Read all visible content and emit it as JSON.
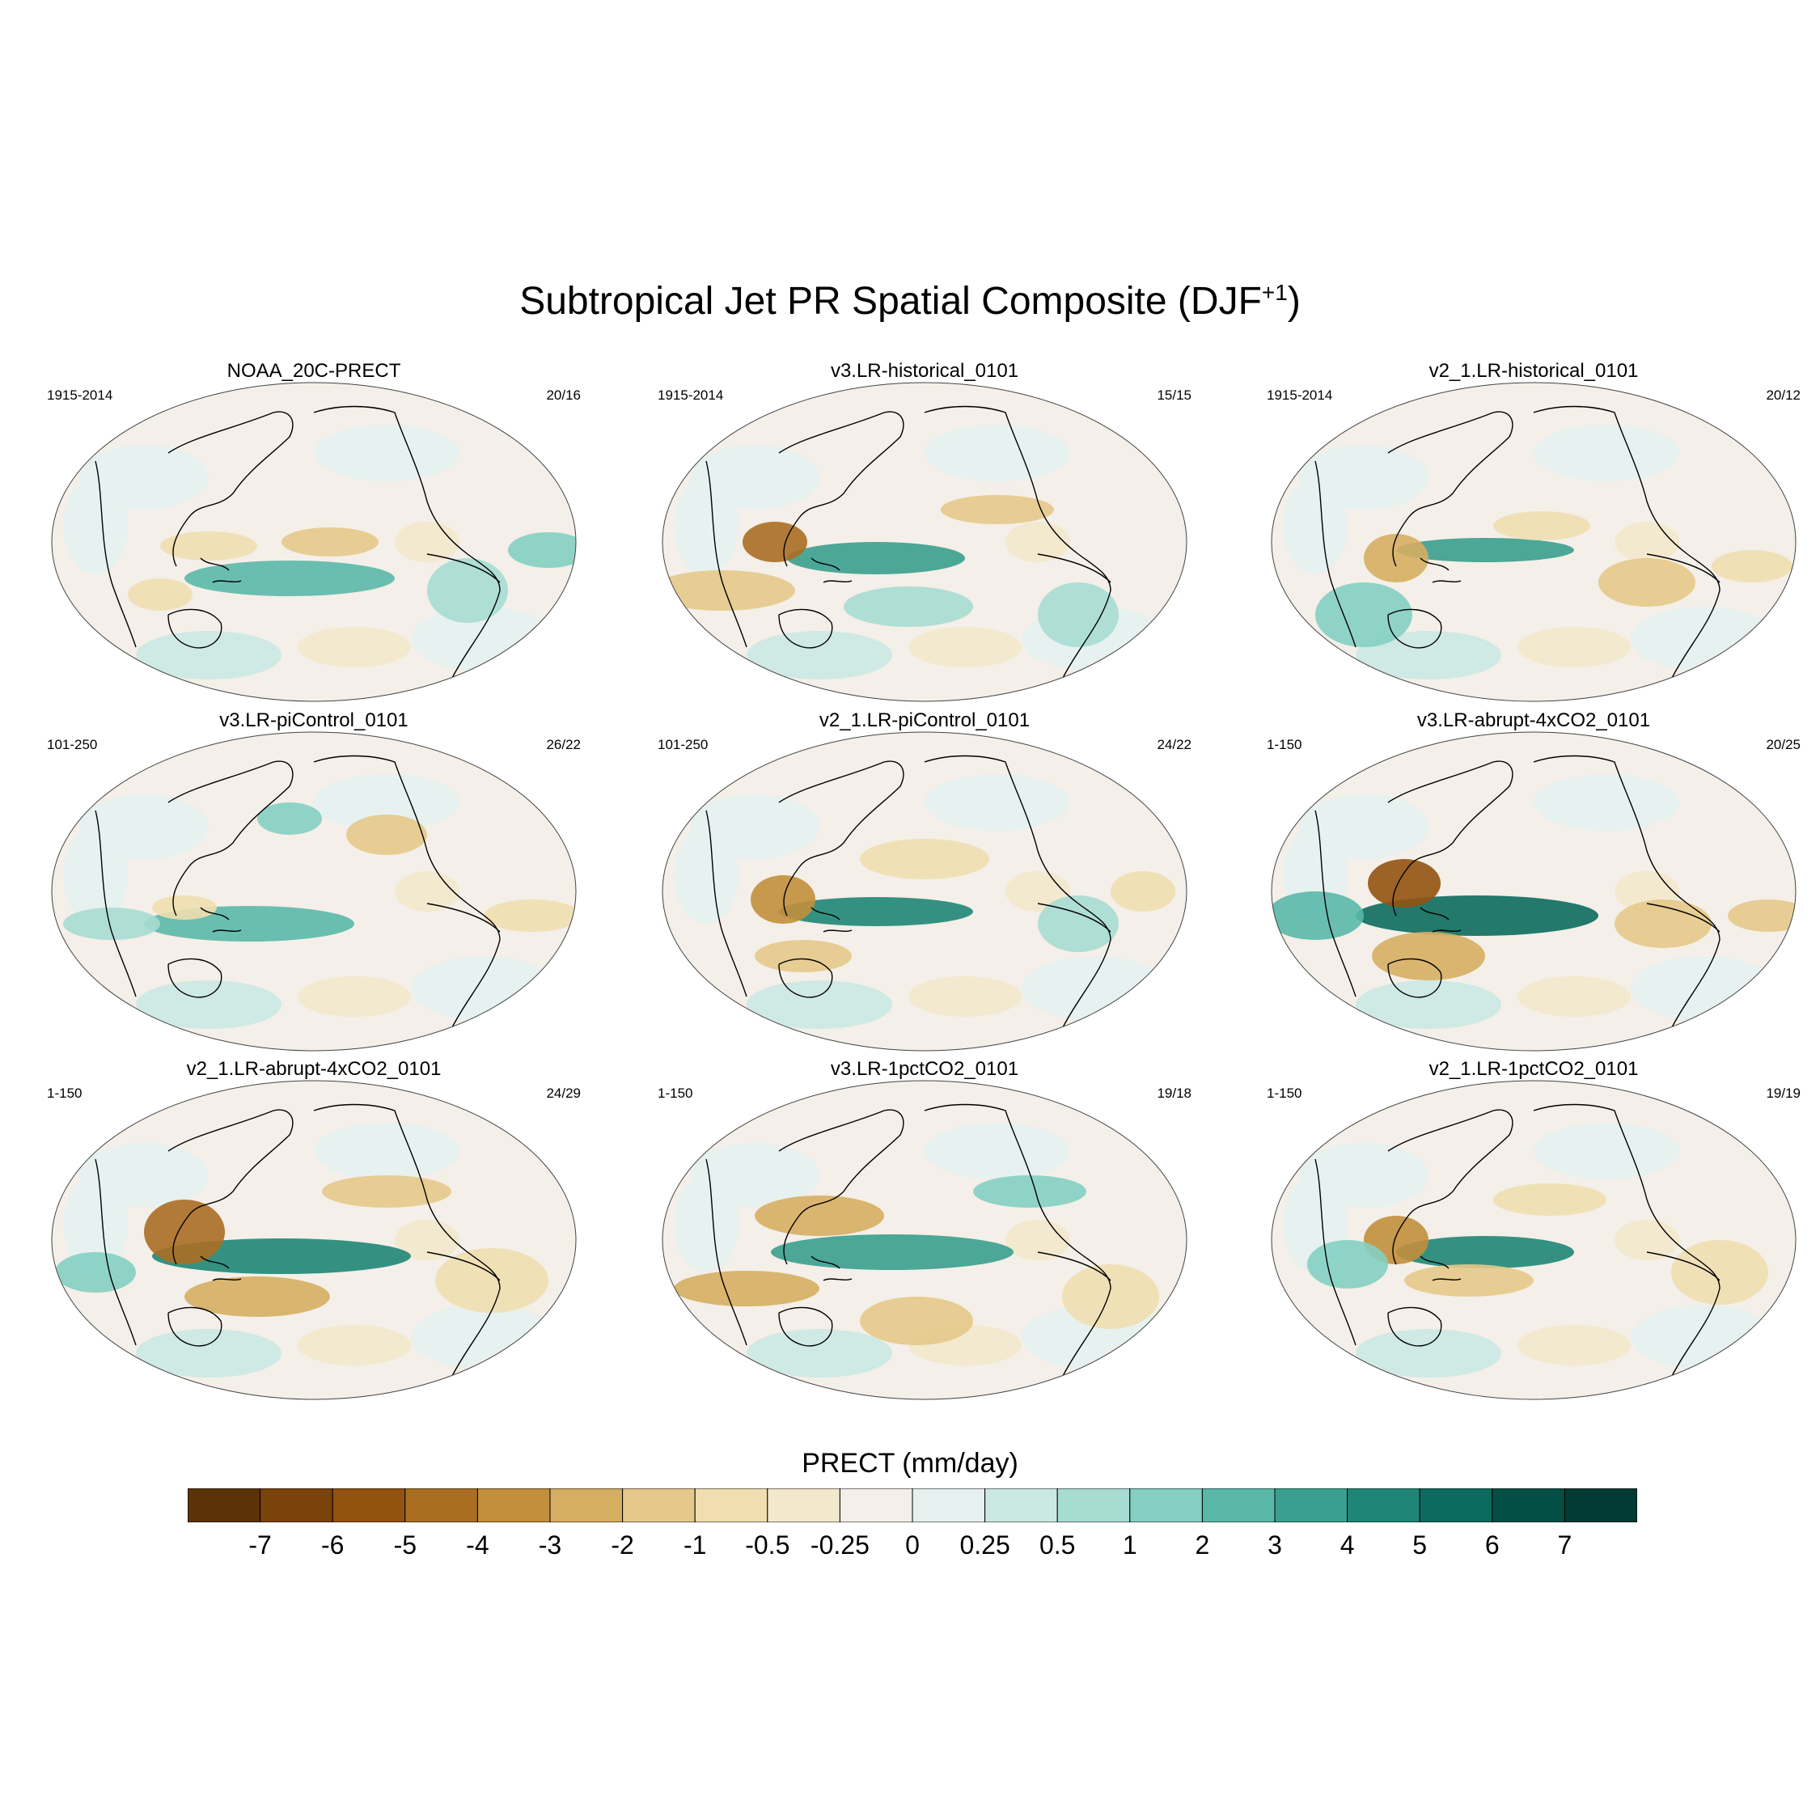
{
  "title": {
    "text": "Subtropical Jet PR Spatial Composite (DJF",
    "sup": "+1",
    "close": ")"
  },
  "panels": [
    {
      "title": "NOAA_20C-PRECT",
      "years": "1915-2014",
      "count": "20/16"
    },
    {
      "title": "v3.LR-historical_0101",
      "years": "1915-2014",
      "count": "15/15"
    },
    {
      "title": "v2_1.LR-historical_0101",
      "years": "1915-2014",
      "count": "20/12"
    },
    {
      "title": "v3.LR-piControl_0101",
      "years": "101-250",
      "count": "26/22"
    },
    {
      "title": "v2_1.LR-piControl_0101",
      "years": "101-250",
      "count": "24/22"
    },
    {
      "title": "v3.LR-abrupt-4xCO2_0101",
      "years": "1-150",
      "count": "20/25"
    },
    {
      "title": "v2_1.LR-abrupt-4xCO2_0101",
      "years": "1-150",
      "count": "24/29"
    },
    {
      "title": "v3.LR-1pctCO2_0101",
      "years": "1-150",
      "count": "19/18"
    },
    {
      "title": "v2_1.LR-1pctCO2_0101",
      "years": "1-150",
      "count": "19/19"
    }
  ],
  "colorbar": {
    "title": "PRECT (mm/day)",
    "labels": [
      "-7",
      "-6",
      "-5",
      "-4",
      "-3",
      "-2",
      "-1",
      "-0.5",
      "-0.25",
      "0",
      "0.25",
      "0.5",
      "1",
      "2",
      "3",
      "4",
      "5",
      "6",
      "7"
    ],
    "colors": [
      "#5c3208",
      "#7a430b",
      "#94520f",
      "#aa6e23",
      "#c28f3c",
      "#d6ae62",
      "#e5c98a",
      "#f0deb0",
      "#f3e8cc",
      "#f4efe8",
      "#e6f1ef",
      "#cbe8e3",
      "#a7dcd3",
      "#84cfc2",
      "#5ab8a8",
      "#3a9f8e",
      "#1f8677",
      "#0b6b5e",
      "#034f45",
      "#023b33"
    ]
  }
}
